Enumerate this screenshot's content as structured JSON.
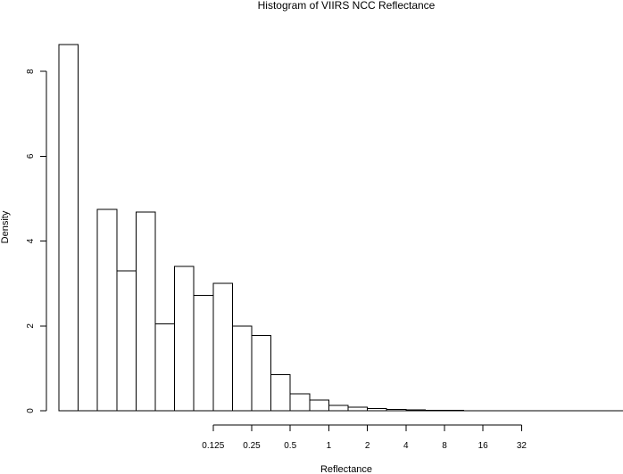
{
  "chart_data": {
    "type": "bar",
    "title": "Histogram of VIIRS NCC Reflectance",
    "xlabel": "Reflectance",
    "ylabel": "Density",
    "x_scale": "log2",
    "x_ticks": [
      "0.125",
      "0.25",
      "0.5",
      "1",
      "2",
      "4",
      "8",
      "16",
      "32"
    ],
    "y_ticks": [
      "0",
      "2",
      "4",
      "6",
      "8"
    ],
    "ylim": [
      0,
      8.7
    ],
    "grid": false,
    "bars": [
      {
        "x0": 0.0078125,
        "x1": 0.011,
        "density": 8.63
      },
      {
        "x0": 0.011,
        "x1": 0.0156,
        "density": 0
      },
      {
        "x0": 0.0156,
        "x1": 0.0221,
        "density": 4.75
      },
      {
        "x0": 0.0221,
        "x1": 0.0313,
        "density": 3.3
      },
      {
        "x0": 0.0313,
        "x1": 0.0442,
        "density": 4.68
      },
      {
        "x0": 0.0442,
        "x1": 0.0625,
        "density": 2.05
      },
      {
        "x0": 0.0625,
        "x1": 0.0884,
        "density": 3.4
      },
      {
        "x0": 0.0884,
        "x1": 0.125,
        "density": 2.72
      },
      {
        "x0": 0.125,
        "x1": 0.177,
        "density": 3.0
      },
      {
        "x0": 0.177,
        "x1": 0.25,
        "density": 2.0
      },
      {
        "x0": 0.25,
        "x1": 0.354,
        "density": 1.77
      },
      {
        "x0": 0.354,
        "x1": 0.5,
        "density": 0.85
      },
      {
        "x0": 0.5,
        "x1": 0.707,
        "density": 0.4
      },
      {
        "x0": 0.707,
        "x1": 1.0,
        "density": 0.25
      },
      {
        "x0": 1.0,
        "x1": 1.41,
        "density": 0.13
      },
      {
        "x0": 1.41,
        "x1": 2.0,
        "density": 0.08
      },
      {
        "x0": 2.0,
        "x1": 2.83,
        "density": 0.05
      },
      {
        "x0": 2.83,
        "x1": 4.0,
        "density": 0.03
      },
      {
        "x0": 4.0,
        "x1": 5.66,
        "density": 0.02
      },
      {
        "x0": 5.66,
        "x1": 8.0,
        "density": 0.015
      },
      {
        "x0": 8.0,
        "x1": 11.3,
        "density": 0.01
      },
      {
        "x0": 11.3,
        "x1": 16.0,
        "density": 0.005
      },
      {
        "x0": 16.0,
        "x1": 22.6,
        "density": 0.003
      },
      {
        "x0": 22.6,
        "x1": 32.0,
        "density": 0.002
      },
      {
        "x0": 32.0,
        "x1": 45.3,
        "density": 0.001
      },
      {
        "x0": 45.3,
        "x1": 64.0,
        "density": 0.001
      },
      {
        "x0": 64.0,
        "x1": 90.5,
        "density": 0.001
      },
      {
        "x0": 90.5,
        "x1": 128.0,
        "density": 0.0005
      },
      {
        "x0": 128.0,
        "x1": 181.0,
        "density": 0.0005
      },
      {
        "x0": 181.0,
        "x1": 256.0,
        "density": 0.0005
      }
    ]
  }
}
